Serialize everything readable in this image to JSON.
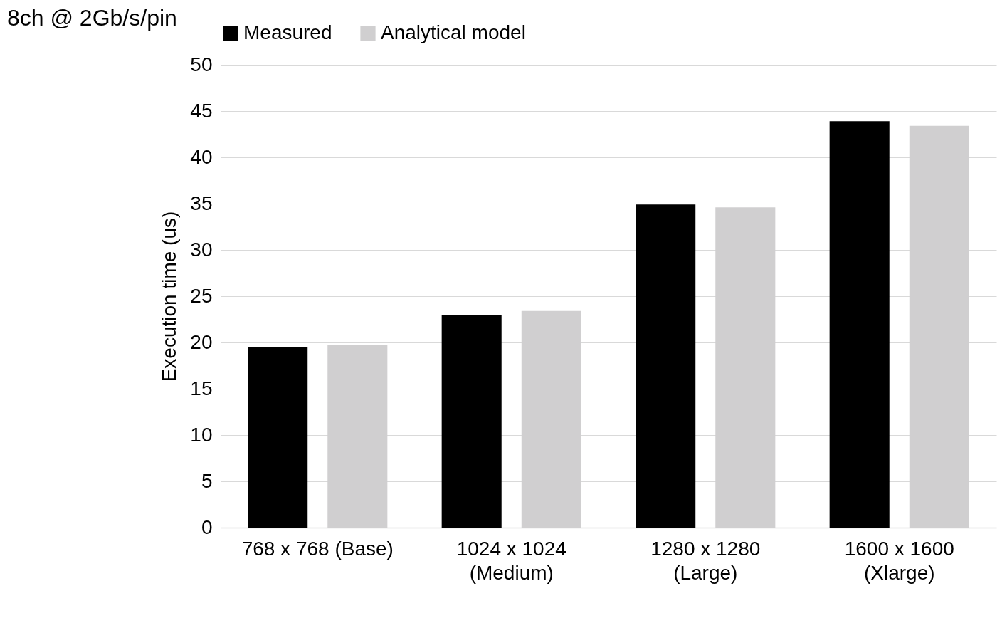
{
  "chart_data": {
    "type": "bar",
    "title": "8ch @ 2Gb/s/pin",
    "ylabel": "Execution time (us)",
    "categories": [
      "768 x 768 (Base)",
      "1024 x 1024\n(Medium)",
      "1280 x 1280\n(Large)",
      "1600 x 1600\n(Xlarge)"
    ],
    "series": [
      {
        "name": "Measured",
        "color": "#000000",
        "values": [
          19.5,
          23.0,
          34.9,
          43.9
        ]
      },
      {
        "name": "Analytical model",
        "color": "#d0cfd0",
        "values": [
          19.7,
          23.4,
          34.6,
          43.4
        ]
      }
    ],
    "ylim": [
      0,
      50
    ],
    "yticks": [
      0,
      5,
      10,
      15,
      20,
      25,
      30,
      35,
      40,
      45,
      50
    ],
    "grid": "y",
    "legend": "top"
  }
}
